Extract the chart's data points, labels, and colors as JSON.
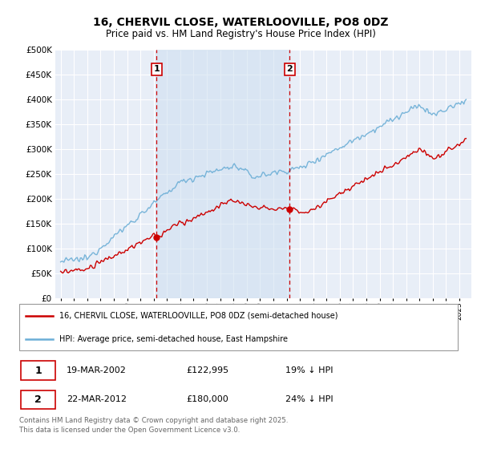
{
  "title": "16, CHERVIL CLOSE, WATERLOOVILLE, PO8 0DZ",
  "subtitle": "Price paid vs. HM Land Registry's House Price Index (HPI)",
  "legend_line1": "16, CHERVIL CLOSE, WATERLOOVILLE, PO8 0DZ (semi-detached house)",
  "legend_line2": "HPI: Average price, semi-detached house, East Hampshire",
  "transaction1_date": "19-MAR-2002",
  "transaction1_price": "£122,995",
  "transaction1_hpi": "19% ↓ HPI",
  "transaction2_date": "22-MAR-2012",
  "transaction2_price": "£180,000",
  "transaction2_hpi": "24% ↓ HPI",
  "hpi_color": "#6baed6",
  "price_color": "#cc0000",
  "dashed_color": "#cc0000",
  "background_color": "#e8eef7",
  "shaded_band_color": "#dce8f5",
  "grid_color": "#ffffff",
  "footnote": "Contains HM Land Registry data © Crown copyright and database right 2025.\nThis data is licensed under the Open Government Licence v3.0.",
  "ylim": [
    0,
    500000
  ],
  "yticks": [
    0,
    50000,
    100000,
    150000,
    200000,
    250000,
    300000,
    350000,
    400000,
    450000,
    500000
  ],
  "year_start": 1995,
  "year_end": 2025,
  "transaction1_year": 2002.21,
  "transaction2_year": 2012.22
}
